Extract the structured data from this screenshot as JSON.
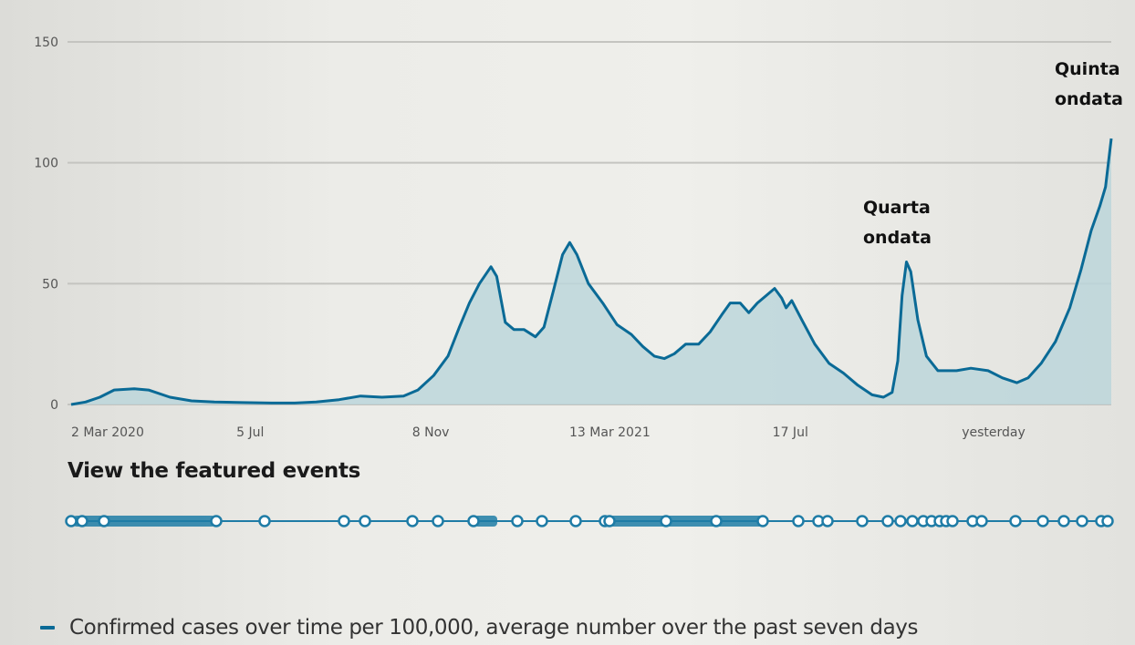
{
  "chart_data": {
    "type": "area",
    "title": "",
    "xlabel": "",
    "ylabel": "",
    "ylim": [
      0,
      150
    ],
    "yticks": [
      "0",
      "50",
      "100",
      "150"
    ],
    "grid": true,
    "x_tick_labels": [
      "2 Mar 2020",
      "5 Jul",
      "8 Nov",
      "13 Mar 2021",
      "17 Jul",
      "yesterday"
    ],
    "x_tick_dates": [
      "2020-03-02",
      "2020-07-05",
      "2020-11-08",
      "2021-03-13",
      "2021-07-17",
      "2021-12-28"
    ],
    "series": [
      {
        "name": "Confirmed cases over time per 100,000, average number over the past seven days",
        "color": "#0a6a96",
        "fill": "#bcd6da",
        "points": [
          [
            "2020-03-02",
            0
          ],
          [
            "2020-03-12",
            1
          ],
          [
            "2020-03-22",
            3
          ],
          [
            "2020-04-01",
            6
          ],
          [
            "2020-04-15",
            6.5
          ],
          [
            "2020-04-25",
            6
          ],
          [
            "2020-05-10",
            3
          ],
          [
            "2020-05-25",
            1.5
          ],
          [
            "2020-06-10",
            1
          ],
          [
            "2020-06-30",
            0.8
          ],
          [
            "2020-07-20",
            0.6
          ],
          [
            "2020-08-05",
            0.6
          ],
          [
            "2020-08-20",
            1
          ],
          [
            "2020-09-05",
            2
          ],
          [
            "2020-09-20",
            3.5
          ],
          [
            "2020-10-05",
            3
          ],
          [
            "2020-10-20",
            3.5
          ],
          [
            "2020-10-30",
            6
          ],
          [
            "2020-11-10",
            12
          ],
          [
            "2020-11-20",
            20
          ],
          [
            "2020-11-28",
            32
          ],
          [
            "2020-12-05",
            42
          ],
          [
            "2020-12-12",
            50
          ],
          [
            "2020-12-20",
            57
          ],
          [
            "2020-12-24",
            53
          ],
          [
            "2020-12-30",
            34
          ],
          [
            "2021-01-05",
            31
          ],
          [
            "2021-01-12",
            31
          ],
          [
            "2021-01-20",
            28
          ],
          [
            "2021-01-26",
            32
          ],
          [
            "2021-02-02",
            48
          ],
          [
            "2021-02-08",
            62
          ],
          [
            "2021-02-13",
            67
          ],
          [
            "2021-02-18",
            62
          ],
          [
            "2021-02-26",
            50
          ],
          [
            "2021-03-08",
            42
          ],
          [
            "2021-03-18",
            33
          ],
          [
            "2021-03-28",
            29
          ],
          [
            "2021-04-05",
            24
          ],
          [
            "2021-04-13",
            20
          ],
          [
            "2021-04-20",
            19
          ],
          [
            "2021-04-27",
            21
          ],
          [
            "2021-05-05",
            25
          ],
          [
            "2021-05-14",
            25
          ],
          [
            "2021-05-22",
            30
          ],
          [
            "2021-05-30",
            37
          ],
          [
            "2021-06-05",
            42
          ],
          [
            "2021-06-12",
            42
          ],
          [
            "2021-06-18",
            38
          ],
          [
            "2021-06-24",
            42
          ],
          [
            "2021-06-30",
            45
          ],
          [
            "2021-07-06",
            48
          ],
          [
            "2021-07-11",
            44
          ],
          [
            "2021-07-14",
            40
          ],
          [
            "2021-07-18",
            43
          ],
          [
            "2021-07-25",
            35
          ],
          [
            "2021-08-03",
            25
          ],
          [
            "2021-08-13",
            17
          ],
          [
            "2021-08-23",
            13
          ],
          [
            "2021-09-02",
            8
          ],
          [
            "2021-09-12",
            4
          ],
          [
            "2021-09-20",
            3
          ],
          [
            "2021-09-26",
            5
          ],
          [
            "2021-09-30",
            18
          ],
          [
            "2021-10-03",
            45
          ],
          [
            "2021-10-06",
            59
          ],
          [
            "2021-10-09",
            55
          ],
          [
            "2021-10-14",
            35
          ],
          [
            "2021-10-20",
            20
          ],
          [
            "2021-10-28",
            14
          ],
          [
            "2021-11-10",
            14
          ],
          [
            "2021-11-20",
            15
          ],
          [
            "2021-12-02",
            14
          ],
          [
            "2021-12-12",
            11
          ],
          [
            "2021-12-22",
            9
          ],
          [
            "2021-12-30",
            11
          ],
          [
            "2022-01-08",
            17
          ],
          [
            "2022-01-18",
            26
          ],
          [
            "2022-01-28",
            40
          ],
          [
            "2022-02-05",
            56
          ],
          [
            "2022-02-12",
            72
          ],
          [
            "2022-02-18",
            82
          ],
          [
            "2022-02-22",
            90
          ],
          [
            "2022-02-26",
            110
          ]
        ]
      }
    ],
    "annotations": [
      {
        "lines": [
          "Quarta",
          "ondata"
        ],
        "date": "2021-10-06",
        "value": 59
      },
      {
        "lines": [
          "Quinta",
          "ondata"
        ],
        "date": "2022-02-26",
        "value": 110
      }
    ],
    "legend_position": "bottom-left"
  },
  "events": {
    "title": "View the featured events",
    "markers_count": 38
  },
  "legend": {
    "text": "Confirmed cases over time per 100,000, average number over the past seven days"
  }
}
